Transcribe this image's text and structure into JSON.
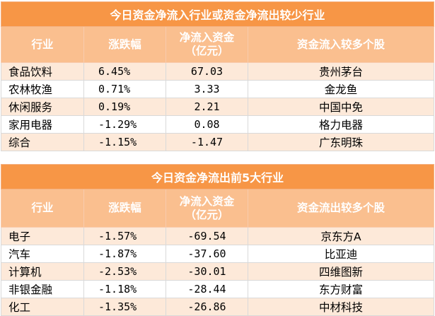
{
  "table1": {
    "title": "今日资金净流入行业或资金净流出较少行业",
    "headers": [
      "行业",
      "涨跌幅",
      "净流入资金\n（亿元）",
      "资金流入较多个股"
    ],
    "rows": [
      [
        "食品饮料",
        "6.45%",
        "67.03",
        "贵州茅台"
      ],
      [
        "农林牧渔",
        "0.71%",
        "3.33",
        "金龙鱼"
      ],
      [
        "休闲服务",
        "0.19%",
        "2.21",
        "中国中免"
      ],
      [
        "家用电器",
        "-1.29%",
        "0.08",
        "格力电器"
      ],
      [
        "综合",
        "-1.15%",
        "-1.47",
        "广东明珠"
      ]
    ]
  },
  "table2": {
    "title": "今日资金净流出前5大行业",
    "headers": [
      "行业",
      "涨跌幅",
      "净流入资金\n（亿元）",
      "资金流出较多个股"
    ],
    "rows": [
      [
        "电子",
        "-1.57%",
        "-69.54",
        "京东方A"
      ],
      [
        "汽车",
        "-1.87%",
        "-37.60",
        "比亚迪"
      ],
      [
        "计算机",
        "-2.53%",
        "-30.01",
        "四维图新"
      ],
      [
        "非银金融",
        "-1.18%",
        "-28.44",
        "东方财富"
      ],
      [
        "化工",
        "-1.35%",
        "-26.86",
        "中材科技"
      ]
    ]
  }
}
